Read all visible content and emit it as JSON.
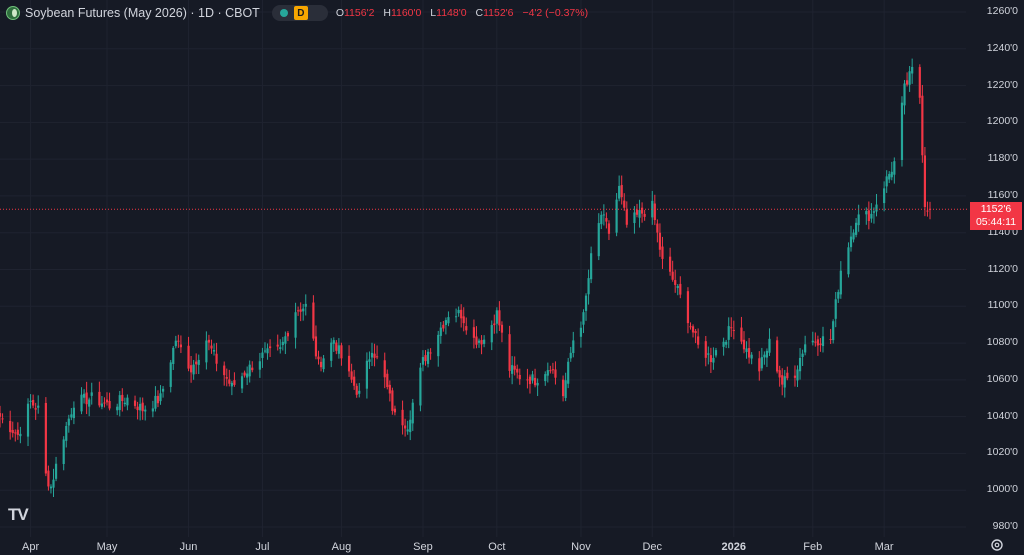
{
  "legend": {
    "symbol_icon": "soybean-symbol-icon",
    "title": "Soybean Futures (May 2026) · 1D · CBOT",
    "status_icon": "market-status-dot-icon",
    "badge": "D",
    "o_label": "O",
    "o_value": "1156'2",
    "h_label": "H",
    "h_value": "1160'0",
    "l_label": "L",
    "l_value": "1148'0",
    "c_label": "C",
    "c_value": "1152'6",
    "change": "−4'2 (−0.37%)"
  },
  "price_tag": {
    "price": "1152'6",
    "countdown": "05:44:11"
  },
  "logo_text": "TV",
  "colors": {
    "background": "#161a25",
    "up": "#26a69a",
    "down": "#f23645",
    "grid": "#1f2330"
  },
  "chart_data": {
    "type": "candlestick",
    "title": "Soybean Futures (May 2026) · 1D · CBOT",
    "ylim": [
      975,
      1270
    ],
    "y_ticks": [
      "1260'0",
      "1240'0",
      "1220'0",
      "1200'0",
      "1180'0",
      "1160'0",
      "1140'0",
      "1120'0",
      "1100'0",
      "1080'0",
      "1060'0",
      "1040'0",
      "1020'0",
      "1000'0",
      "980'0"
    ],
    "x_ticks": [
      {
        "label": "Apr",
        "date": "2025-04-01"
      },
      {
        "label": "May",
        "date": "2025-05-01"
      },
      {
        "label": "Jun",
        "date": "2025-06-02"
      },
      {
        "label": "Jul",
        "date": "2025-07-01"
      },
      {
        "label": "Aug",
        "date": "2025-08-01"
      },
      {
        "label": "Sep",
        "date": "2025-09-02"
      },
      {
        "label": "Oct",
        "date": "2025-10-01"
      },
      {
        "label": "Nov",
        "date": "2025-11-03"
      },
      {
        "label": "Dec",
        "date": "2025-12-01"
      },
      {
        "label": "2026",
        "date": "2026-01-02",
        "bold": true
      },
      {
        "label": "Feb",
        "date": "2026-02-02"
      },
      {
        "label": "Mar",
        "date": "2026-03-02"
      }
    ],
    "last_price": 1152.75,
    "close_path": [
      [
        "2025-03-20",
        1040
      ],
      [
        "2025-03-27",
        1030
      ],
      [
        "2025-04-01",
        1048
      ],
      [
        "2025-04-04",
        1044
      ],
      [
        "2025-04-07",
        1008
      ],
      [
        "2025-04-09",
        1002
      ],
      [
        "2025-04-14",
        1030
      ],
      [
        "2025-04-18",
        1048
      ],
      [
        "2025-04-25",
        1050
      ],
      [
        "2025-05-02",
        1046
      ],
      [
        "2025-05-09",
        1050
      ],
      [
        "2025-05-15",
        1044
      ],
      [
        "2025-05-22",
        1050
      ],
      [
        "2025-05-28",
        1082
      ],
      [
        "2025-06-03",
        1066
      ],
      [
        "2025-06-09",
        1082
      ],
      [
        "2025-06-13",
        1070
      ],
      [
        "2025-06-19",
        1056
      ],
      [
        "2025-06-24",
        1064
      ],
      [
        "2025-07-01",
        1073
      ],
      [
        "2025-07-08",
        1076
      ],
      [
        "2025-07-14",
        1098
      ],
      [
        "2025-07-18",
        1100
      ],
      [
        "2025-07-23",
        1068
      ],
      [
        "2025-07-29",
        1082
      ],
      [
        "2025-08-04",
        1062
      ],
      [
        "2025-08-08",
        1052
      ],
      [
        "2025-08-13",
        1078
      ],
      [
        "2025-08-18",
        1060
      ],
      [
        "2025-08-22",
        1040
      ],
      [
        "2025-08-27",
        1036
      ],
      [
        "2025-09-02",
        1070
      ],
      [
        "2025-09-08",
        1086
      ],
      [
        "2025-09-12",
        1096
      ],
      [
        "2025-09-17",
        1096
      ],
      [
        "2025-09-22",
        1082
      ],
      [
        "2025-09-26",
        1082
      ],
      [
        "2025-10-01",
        1096
      ],
      [
        "2025-10-06",
        1066
      ],
      [
        "2025-10-10",
        1062
      ],
      [
        "2025-10-16",
        1060
      ],
      [
        "2025-10-22",
        1068
      ],
      [
        "2025-10-27",
        1052
      ],
      [
        "2025-10-31",
        1082
      ],
      [
        "2025-11-04",
        1094
      ],
      [
        "2025-11-07",
        1126
      ],
      [
        "2025-11-11",
        1150
      ],
      [
        "2025-11-14",
        1140
      ],
      [
        "2025-11-18",
        1164
      ],
      [
        "2025-11-21",
        1144
      ],
      [
        "2025-11-26",
        1150
      ],
      [
        "2025-12-01",
        1154
      ],
      [
        "2025-12-05",
        1124
      ],
      [
        "2025-12-10",
        1112
      ],
      [
        "2025-12-15",
        1094
      ],
      [
        "2025-12-19",
        1078
      ],
      [
        "2025-12-24",
        1072
      ],
      [
        "2026-01-02",
        1090
      ],
      [
        "2026-01-07",
        1076
      ],
      [
        "2026-01-12",
        1066
      ],
      [
        "2026-01-16",
        1080
      ],
      [
        "2026-01-21",
        1058
      ],
      [
        "2026-01-26",
        1064
      ],
      [
        "2026-01-30",
        1080
      ],
      [
        "2026-02-04",
        1082
      ],
      [
        "2026-02-09",
        1082
      ],
      [
        "2026-02-13",
        1120
      ],
      [
        "2026-02-19",
        1148
      ],
      [
        "2026-02-25",
        1150
      ],
      [
        "2026-03-02",
        1166
      ],
      [
        "2026-03-06",
        1178
      ],
      [
        "2026-03-10",
        1218
      ],
      [
        "2026-03-13",
        1228
      ],
      [
        "2026-03-16",
        1214
      ],
      [
        "2026-03-18",
        1156
      ],
      [
        "2026-03-20",
        1152.75
      ]
    ]
  }
}
